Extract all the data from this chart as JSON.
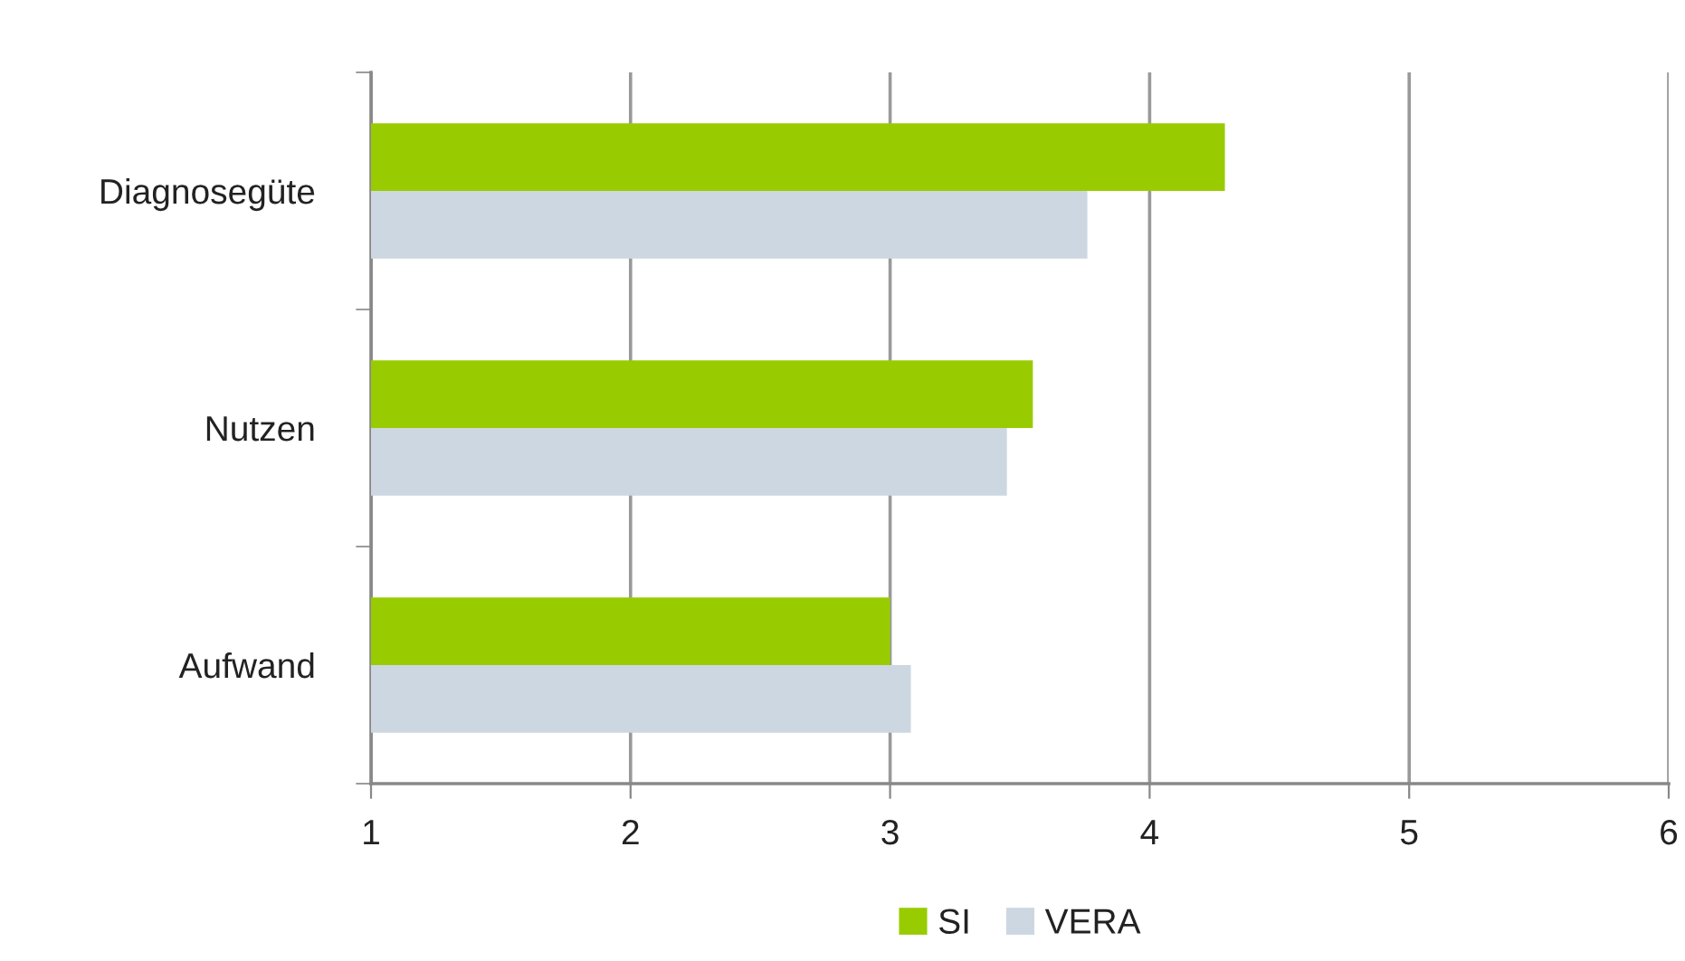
{
  "chart_data": {
    "type": "bar",
    "orientation": "horizontal",
    "categories": [
      "Diagnosegüte",
      "Nutzen",
      "Aufwand"
    ],
    "series": [
      {
        "name": "SI",
        "color": "#99cc00",
        "values": [
          4.29,
          3.55,
          3.0
        ]
      },
      {
        "name": "VERA",
        "color": "#cdd7e1",
        "values": [
          3.76,
          3.45,
          3.08
        ]
      }
    ],
    "xlim": [
      1,
      6
    ],
    "xticks": [
      1,
      2,
      3,
      4,
      5,
      6
    ],
    "grid": "x",
    "legend": "bottom"
  }
}
